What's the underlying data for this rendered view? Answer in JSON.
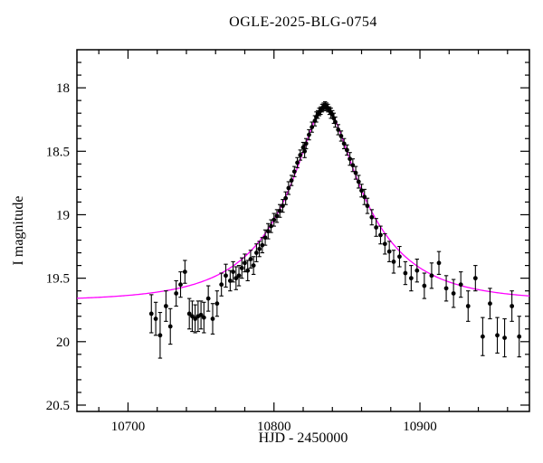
{
  "title": "OGLE-2025-BLG-0754",
  "chart_data": {
    "type": "scatter",
    "title": "OGLE-2025-BLG-0754",
    "xlabel": "HJD - 2450000",
    "ylabel": "I magnitude",
    "xlim": [
      10665,
      10975
    ],
    "ylim": [
      17.7,
      20.55
    ],
    "y_axis_inverted": true,
    "x_major_ticks": [
      10700,
      10800,
      10900
    ],
    "x_minor_step": 20,
    "y_major_ticks": [
      18,
      18.5,
      19,
      19.5,
      20
    ],
    "y_minor_step": 0.1,
    "grid": false,
    "point_color": "#000000",
    "model": {
      "type": "paczynski_microlensing",
      "t0": 10835,
      "tE": 60,
      "u0": 0.25,
      "baseline_mag": 19.68,
      "peak_mag": 18.15,
      "color": "#ff00ff"
    },
    "points_format": [
      "hjd_minus_2450000",
      "i_mag",
      "mag_err"
    ],
    "points": [
      [
        10716,
        19.78,
        0.15
      ],
      [
        10719,
        19.82,
        0.13
      ],
      [
        10722,
        19.95,
        0.18
      ],
      [
        10726,
        19.72,
        0.12
      ],
      [
        10729,
        19.88,
        0.14
      ],
      [
        10733,
        19.62,
        0.1
      ],
      [
        10736,
        19.55,
        0.1
      ],
      [
        10739,
        19.45,
        0.09
      ],
      [
        10742,
        19.78,
        0.12
      ],
      [
        10744,
        19.8,
        0.12
      ],
      [
        10746,
        19.82,
        0.11
      ],
      [
        10748,
        19.8,
        0.12
      ],
      [
        10750,
        19.79,
        0.11
      ],
      [
        10752,
        19.81,
        0.12
      ],
      [
        10755,
        19.66,
        0.1
      ],
      [
        10758,
        19.82,
        0.12
      ],
      [
        10761,
        19.7,
        0.1
      ],
      [
        10764,
        19.55,
        0.09
      ],
      [
        10767,
        19.48,
        0.09
      ],
      [
        10770,
        19.52,
        0.08
      ],
      [
        10772,
        19.45,
        0.08
      ],
      [
        10774,
        19.5,
        0.09
      ],
      [
        10776,
        19.48,
        0.08
      ],
      [
        10778,
        19.42,
        0.08
      ],
      [
        10780,
        19.38,
        0.07
      ],
      [
        10782,
        19.44,
        0.08
      ],
      [
        10784,
        19.35,
        0.07
      ],
      [
        10786,
        19.4,
        0.07
      ],
      [
        10788,
        19.3,
        0.07
      ],
      [
        10790,
        19.27,
        0.06
      ],
      [
        10792,
        19.24,
        0.06
      ],
      [
        10794,
        19.18,
        0.06
      ],
      [
        10796,
        19.13,
        0.06
      ],
      [
        10798,
        19.09,
        0.05
      ],
      [
        10800,
        19.04,
        0.05
      ],
      [
        10802,
        19.01,
        0.05
      ],
      [
        10804,
        18.97,
        0.05
      ],
      [
        10806,
        18.93,
        0.05
      ],
      [
        10808,
        18.87,
        0.05
      ],
      [
        10810,
        18.79,
        0.05
      ],
      [
        10812,
        18.73,
        0.04
      ],
      [
        10814,
        18.66,
        0.04
      ],
      [
        10816,
        18.59,
        0.04
      ],
      [
        10818,
        18.53,
        0.04
      ],
      [
        10820,
        18.47,
        0.04
      ],
      [
        10821,
        18.5,
        0.05
      ],
      [
        10822,
        18.44,
        0.04
      ],
      [
        10824,
        18.37,
        0.04
      ],
      [
        10826,
        18.31,
        0.04
      ],
      [
        10828,
        18.26,
        0.04
      ],
      [
        10829,
        18.23,
        0.04
      ],
      [
        10830,
        18.21,
        0.03
      ],
      [
        10831,
        18.19,
        0.03
      ],
      [
        10832,
        18.18,
        0.03
      ],
      [
        10833,
        18.16,
        0.03
      ],
      [
        10834,
        18.15,
        0.03
      ],
      [
        10835,
        18.14,
        0.03
      ],
      [
        10836,
        18.15,
        0.03
      ],
      [
        10837,
        18.16,
        0.03
      ],
      [
        10838,
        18.18,
        0.03
      ],
      [
        10839,
        18.2,
        0.04
      ],
      [
        10840,
        18.21,
        0.03
      ],
      [
        10841,
        18.24,
        0.04
      ],
      [
        10842,
        18.27,
        0.04
      ],
      [
        10844,
        18.33,
        0.04
      ],
      [
        10846,
        18.38,
        0.04
      ],
      [
        10848,
        18.44,
        0.04
      ],
      [
        10850,
        18.49,
        0.04
      ],
      [
        10852,
        18.56,
        0.05
      ],
      [
        10854,
        18.61,
        0.05
      ],
      [
        10856,
        18.67,
        0.05
      ],
      [
        10858,
        18.74,
        0.05
      ],
      [
        10860,
        18.81,
        0.05
      ],
      [
        10862,
        18.86,
        0.06
      ],
      [
        10864,
        18.93,
        0.06
      ],
      [
        10867,
        19.02,
        0.06
      ],
      [
        10870,
        19.1,
        0.07
      ],
      [
        10873,
        19.16,
        0.07
      ],
      [
        10876,
        19.23,
        0.08
      ],
      [
        10879,
        19.29,
        0.08
      ],
      [
        10882,
        19.37,
        0.09
      ],
      [
        10886,
        19.33,
        0.08
      ],
      [
        10890,
        19.46,
        0.09
      ],
      [
        10894,
        19.5,
        0.1
      ],
      [
        10898,
        19.44,
        0.09
      ],
      [
        10903,
        19.56,
        0.1
      ],
      [
        10908,
        19.48,
        0.1
      ],
      [
        10913,
        19.38,
        0.09
      ],
      [
        10918,
        19.58,
        0.1
      ],
      [
        10923,
        19.62,
        0.11
      ],
      [
        10928,
        19.55,
        0.1
      ],
      [
        10933,
        19.72,
        0.12
      ],
      [
        10938,
        19.5,
        0.1
      ],
      [
        10943,
        19.96,
        0.15
      ],
      [
        10948,
        19.7,
        0.12
      ],
      [
        10953,
        19.95,
        0.14
      ],
      [
        10958,
        19.97,
        0.15
      ],
      [
        10963,
        19.72,
        0.12
      ],
      [
        10968,
        19.96,
        0.16
      ]
    ]
  }
}
